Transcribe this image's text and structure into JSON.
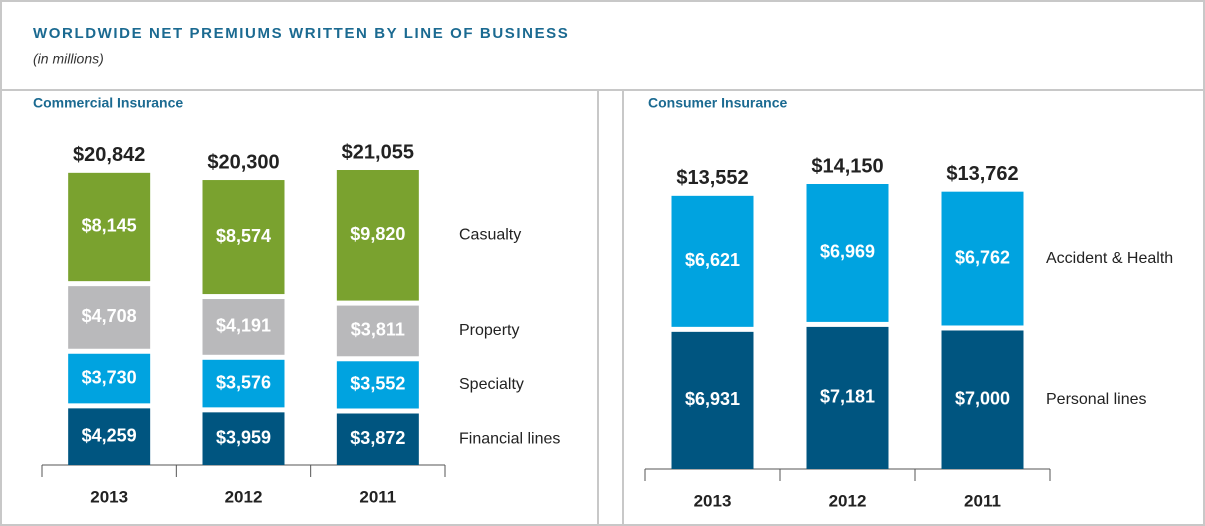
{
  "header": {
    "title": "WORLDWIDE NET PREMIUMS WRITTEN BY LINE OF BUSINESS",
    "subtitle": "(in millions)"
  },
  "chart_data": [
    {
      "type": "bar",
      "stacked": true,
      "title": "Commercial Insurance",
      "categories": [
        "2013",
        "2012",
        "2011"
      ],
      "series": [
        {
          "name": "Financial lines",
          "color": "#005580",
          "values": [
            4259,
            3959,
            3872
          ],
          "value_labels": [
            "$4,259",
            "$3,959",
            "$3,872"
          ]
        },
        {
          "name": "Specialty",
          "color": "#00a3e0",
          "values": [
            3730,
            3576,
            3552
          ],
          "value_labels": [
            "$3,730",
            "$3,576",
            "$3,552"
          ]
        },
        {
          "name": "Property",
          "color": "#b9b9bb",
          "values": [
            4708,
            4191,
            3811
          ],
          "value_labels": [
            "$4,708",
            "$4,191",
            "$3,811"
          ]
        },
        {
          "name": "Casualty",
          "color": "#7aa22f",
          "values": [
            8145,
            8574,
            9820
          ],
          "value_labels": [
            "$8,145",
            "$8,574",
            "$9,820"
          ]
        }
      ],
      "totals": [
        20842,
        20300,
        21055
      ],
      "total_labels": [
        "$20,842",
        "$20,300",
        "$21,055"
      ]
    },
    {
      "type": "bar",
      "stacked": true,
      "title": "Consumer Insurance",
      "categories": [
        "2013",
        "2012",
        "2011"
      ],
      "series": [
        {
          "name": "Personal lines",
          "color": "#005580",
          "values": [
            6931,
            7181,
            7000
          ],
          "value_labels": [
            "$6,931",
            "$7,181",
            "$7,000"
          ]
        },
        {
          "name": "Accident & Health",
          "color": "#00a3e0",
          "values": [
            6621,
            6969,
            6762
          ],
          "value_labels": [
            "$6,621",
            "$6,969",
            "$6,762"
          ]
        }
      ],
      "totals": [
        13552,
        14150,
        13762
      ],
      "total_labels": [
        "$13,552",
        "$14,150",
        "$13,762"
      ]
    }
  ]
}
